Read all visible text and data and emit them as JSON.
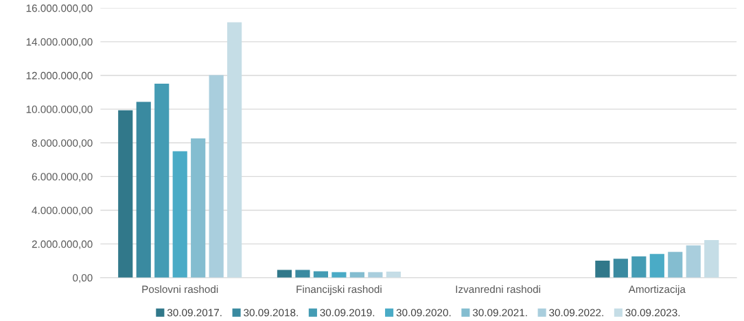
{
  "chart_data": {
    "type": "bar",
    "categories": [
      "Poslovni rashodi",
      "Financijski rashodi",
      "Izvanredni rashodi",
      "Amortizacija"
    ],
    "series": [
      {
        "name": "30.09.2017.",
        "color": "#31788a",
        "values": [
          9930000,
          460000,
          0,
          1010000
        ]
      },
      {
        "name": "30.09.2018.",
        "color": "#3a8aa0",
        "values": [
          10430000,
          460000,
          0,
          1120000
        ]
      },
      {
        "name": "30.09.2019.",
        "color": "#449cb4",
        "values": [
          11510000,
          380000,
          0,
          1260000
        ]
      },
      {
        "name": "30.09.2020.",
        "color": "#4aabc6",
        "values": [
          7500000,
          330000,
          0,
          1410000
        ]
      },
      {
        "name": "30.09.2021.",
        "color": "#84bdd0",
        "values": [
          8270000,
          330000,
          0,
          1530000
        ]
      },
      {
        "name": "30.09.2022.",
        "color": "#a9cedd",
        "values": [
          12020000,
          330000,
          0,
          1920000
        ]
      },
      {
        "name": "30.09.2023.",
        "color": "#c5dde6",
        "values": [
          15150000,
          360000,
          0,
          2230000
        ]
      }
    ],
    "ylim": [
      0,
      16000000
    ],
    "yticks": [
      {
        "value": 0,
        "label": "0,00"
      },
      {
        "value": 2000000,
        "label": "2.000.000,00"
      },
      {
        "value": 4000000,
        "label": "4.000.000,00"
      },
      {
        "value": 6000000,
        "label": "6.000.000,00"
      },
      {
        "value": 8000000,
        "label": "8.000.000,00"
      },
      {
        "value": 10000000,
        "label": "10.000.000,00"
      },
      {
        "value": 12000000,
        "label": "12.000.000,00"
      },
      {
        "value": 14000000,
        "label": "14.000.000,00"
      },
      {
        "value": 16000000,
        "label": "16.000.000,00"
      }
    ],
    "grid": "y",
    "legend": "bottom"
  }
}
